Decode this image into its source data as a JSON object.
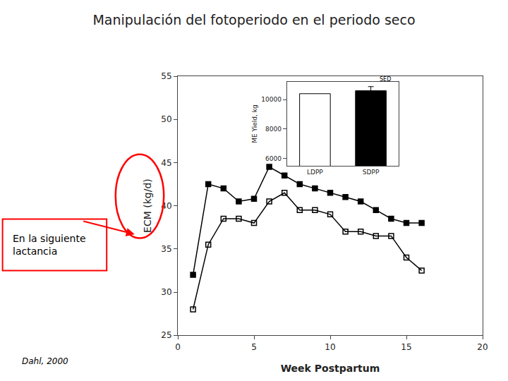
{
  "chart_data": [
    {
      "type": "line",
      "title": "Manipulación del fotoperiodo en el periodo seco",
      "xlabel": "Week Postpartum",
      "ylabel": "ECM (kg/d)",
      "x": [
        1,
        2,
        3,
        4,
        5,
        6,
        7,
        8,
        9,
        10,
        11,
        12,
        13,
        14,
        15,
        16
      ],
      "series": [
        {
          "color": "black",
          "marker": "square",
          "values": [
            32.0,
            42.5,
            42.0,
            40.5,
            40.8,
            44.5,
            43.5,
            42.5,
            42.0,
            41.5,
            41.0,
            40.5,
            39.5,
            38.5,
            38.0,
            38.0
          ]
        },
        {
          "color": "black",
          "marker": "square-open",
          "values": [
            28.0,
            35.5,
            38.5,
            38.5,
            38.0,
            40.5,
            41.5,
            39.5,
            39.5,
            39.0,
            37.0,
            37.0,
            36.5,
            36.5,
            34.0,
            32.5
          ]
        }
      ],
      "xlim": [
        0,
        20
      ],
      "ylim": [
        25,
        55
      ],
      "xticks": [
        0,
        5,
        10,
        15,
        20
      ],
      "yticks": [
        25,
        30,
        35,
        40,
        45,
        50,
        55
      ],
      "grid": false,
      "annotations": [
        "En la siguiente\nlactancia",
        "Dahl, 2000"
      ]
    },
    {
      "type": "bar",
      "ylabel": "ME Yield, kg",
      "categories": [
        "LDPP",
        "SDPP"
      ],
      "values": [
        10400,
        10600
      ],
      "colors": [
        "white",
        "black"
      ],
      "errors": [
        null,
        280
      ],
      "ylim": [
        5500,
        11200
      ],
      "yticks": [
        6000,
        8000,
        10000
      ],
      "grid": false,
      "annotations": [
        "SED"
      ]
    }
  ]
}
